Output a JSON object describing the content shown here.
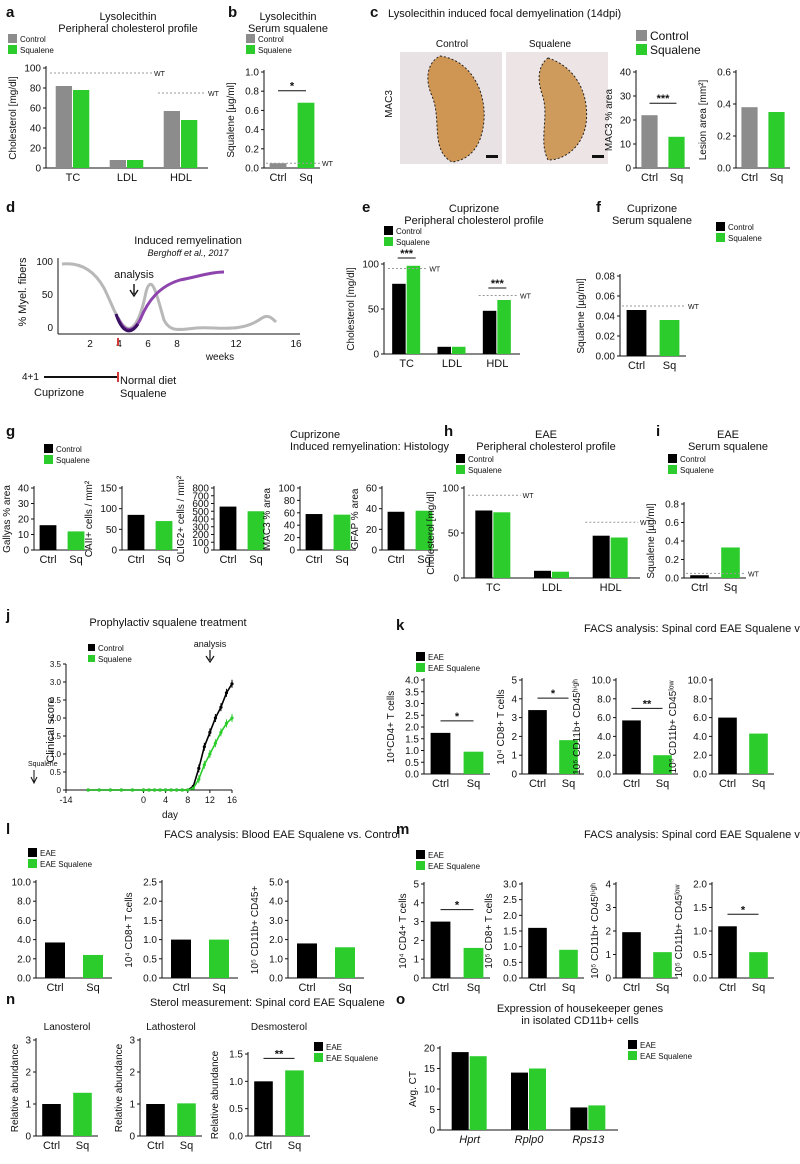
{
  "colors": {
    "control": "#8c8c8c",
    "green": "#2bcc2b",
    "eae": "#000000",
    "purple": "#8e44ad",
    "gray_curve": "#b8b8b8",
    "dash": "#9a9a9a",
    "stain": "#c8853e"
  },
  "panel_labels": [
    "a",
    "b",
    "c",
    "d",
    "e",
    "f",
    "g",
    "h",
    "i",
    "j",
    "k",
    "l",
    "m",
    "n",
    "o"
  ],
  "panel_d": {
    "title": "Induced remyelination",
    "citation": "Berghoff et al., 2017",
    "analysis_label": "analysis",
    "ylabel": "% Myel. fibers",
    "y_ticks": [
      "100",
      "50",
      "0"
    ],
    "x_ticks": [
      "2",
      "4",
      "6",
      "8",
      "12",
      "16"
    ],
    "x_unit": "weeks",
    "schedule_label": "4+1",
    "cuprizone_label": "Cuprizone",
    "diet_label": "Normal diet",
    "squalene_label": "Squalene"
  },
  "panel_c_images": {
    "title": "Lysolecithin induced focal demyelination (14dpi)",
    "left_label": "Control",
    "right_label": "Squalene",
    "stain_label": "MAC3",
    "legend": [
      "Control",
      "Squalene"
    ]
  },
  "panel_j": {
    "title": "Prophylactiv squalene treatment",
    "ylabel": "Clinical score",
    "xlabel": "day",
    "legend": [
      "Control",
      "Squalene"
    ],
    "analysis_label": "analysis",
    "squalene_marker": "Squalene",
    "x_ticks": [
      "-14",
      "0",
      "4",
      "8",
      "12",
      "16"
    ],
    "y_ticks": [
      "0",
      "0.5",
      "1.0",
      "1.5",
      "2.0",
      "2.5",
      "3.0",
      "3.5"
    ],
    "control_values": [
      0,
      0,
      0,
      0,
      0,
      0,
      0,
      0,
      0,
      0,
      0,
      0,
      0,
      0,
      0.1,
      0.6,
      1.2,
      1.6,
      2.0,
      2.3,
      2.7,
      2.95
    ],
    "squalene_values": [
      0,
      0,
      0,
      0,
      0,
      0,
      0,
      0,
      0,
      0,
      0,
      0,
      0,
      0,
      0.05,
      0.3,
      0.7,
      1.0,
      1.3,
      1.6,
      1.85,
      2.0
    ]
  },
  "chart_data": [
    {
      "id": "a",
      "type": "bar",
      "title": [
        "Lysolecithin",
        "Peripheral cholesterol profile"
      ],
      "legend": [
        "Control",
        "Squalene"
      ],
      "ylabel": "Cholesterol [mg/dl]",
      "categories": [
        "TC",
        "LDL",
        "HDL"
      ],
      "series": [
        {
          "name": "Control",
          "values": [
            82,
            8,
            57
          ]
        },
        {
          "name": "Squalene",
          "values": [
            78,
            8,
            48
          ]
        }
      ],
      "ylim": [
        0,
        100
      ],
      "yticks": [
        "0",
        "20",
        "40",
        "60",
        "80",
        "100"
      ],
      "wt": [
        {
          "value": 95,
          "from": 0,
          "to": 1,
          "label": "WT"
        },
        {
          "value": 75,
          "from": 2,
          "to": 2,
          "label": "WT"
        }
      ]
    },
    {
      "id": "b",
      "type": "bar",
      "title": [
        "Lysolecithin",
        "Serum squalene"
      ],
      "legend": [
        "Control",
        "Squalene"
      ],
      "ylabel": "Squalene [µg/ml]",
      "categories": [
        "Ctrl",
        "Sq"
      ],
      "values": [
        0.05,
        0.68
      ],
      "ylim": [
        0,
        1.0
      ],
      "yticks": [
        "0.0",
        "0.2",
        "0.4",
        "0.6",
        "0.8",
        "1.0"
      ],
      "sig": "*",
      "wt": [
        {
          "value": 0.05,
          "label": "WT"
        }
      ]
    },
    {
      "id": "c1",
      "type": "bar",
      "title": [],
      "ylabel": "MAC3 % area",
      "categories": [
        "Ctrl",
        "Sq"
      ],
      "values": [
        22,
        13
      ],
      "ylim": [
        0,
        40
      ],
      "yticks": [
        "0",
        "10",
        "20",
        "30",
        "40"
      ],
      "sig": "***"
    },
    {
      "id": "c2",
      "type": "bar",
      "title": [],
      "ylabel": "Lesion area [mm²]",
      "categories": [
        "Ctrl",
        "Sq"
      ],
      "values": [
        0.38,
        0.35
      ],
      "ylim": [
        0,
        0.6
      ],
      "yticks": [
        "0.0",
        "0.2",
        "0.4",
        "0.6"
      ]
    },
    {
      "id": "e",
      "type": "bar",
      "title": [
        "Cuprizone",
        "Peripheral cholesterol profile"
      ],
      "legend": [
        "Control",
        "Squalene"
      ],
      "ylabel": "Cholesterol [mg/dl]",
      "categories": [
        "TC",
        "LDL",
        "HDL"
      ],
      "series": [
        {
          "name": "Control",
          "values": [
            78,
            8,
            48
          ]
        },
        {
          "name": "Squalene",
          "values": [
            98,
            8,
            60
          ]
        }
      ],
      "ylim": [
        0,
        100
      ],
      "yticks": [
        "0",
        "50",
        "100"
      ],
      "sigs": [
        "***",
        "",
        "***"
      ],
      "wt": [
        {
          "value": 95,
          "from": 0,
          "to": 0,
          "label": "WT"
        },
        {
          "value": 65,
          "from": 2,
          "to": 2,
          "label": "WT"
        }
      ]
    },
    {
      "id": "f",
      "type": "bar",
      "title": [
        "Cuprizone",
        "Serum squalene"
      ],
      "legend": [
        "Control",
        "Squalene"
      ],
      "ylabel": "Squalene [µg/ml]",
      "categories": [
        "Ctrl",
        "Sq"
      ],
      "values": [
        0.046,
        0.036
      ],
      "ylim": [
        0,
        0.08
      ],
      "yticks": [
        "0.00",
        "0.02",
        "0.04",
        "0.06",
        "0.08"
      ],
      "wt": [
        {
          "value": 0.05,
          "label": "WT"
        }
      ]
    },
    {
      "id": "g1",
      "type": "bar",
      "title": [
        "Cuprizone",
        "Induced remyelination: Histology"
      ],
      "legend": [
        "Control",
        "Squalene"
      ],
      "ylabel": "Gallyas % area",
      "categories": [
        "Ctrl",
        "Sq"
      ],
      "values": [
        16,
        12
      ],
      "ylim": [
        0,
        40
      ],
      "yticks": [
        "0",
        "10",
        "20",
        "30",
        "40"
      ]
    },
    {
      "id": "g2",
      "type": "bar",
      "title": [],
      "ylabel": "CAII+ cells / mm²",
      "categories": [
        "Ctrl",
        "Sq"
      ],
      "values": [
        85,
        70
      ],
      "ylim": [
        0,
        150
      ],
      "yticks": [
        "0",
        "50",
        "100",
        "150"
      ]
    },
    {
      "id": "g3",
      "type": "bar",
      "title": [],
      "ylabel": "OLIG2+ cells / mm²",
      "categories": [
        "Ctrl",
        "Sq"
      ],
      "values": [
        560,
        500
      ],
      "ylim": [
        0,
        800
      ],
      "yticks": [
        "0",
        "100",
        "200",
        "300",
        "400",
        "500",
        "600",
        "700",
        "800"
      ]
    },
    {
      "id": "g4",
      "type": "bar",
      "title": [],
      "ylabel": "MAC3 % area",
      "categories": [
        "Ctrl",
        "Sq"
      ],
      "values": [
        58,
        57
      ],
      "ylim": [
        0,
        100
      ],
      "yticks": [
        "0",
        "20",
        "40",
        "60",
        "80",
        "100"
      ]
    },
    {
      "id": "g5",
      "type": "bar",
      "title": [],
      "ylabel": "GFAP % area",
      "categories": [
        "Ctrl",
        "Sq"
      ],
      "values": [
        37,
        38
      ],
      "ylim": [
        0,
        60
      ],
      "yticks": [
        "0",
        "20",
        "40",
        "60"
      ]
    },
    {
      "id": "h",
      "type": "bar",
      "title": [
        "EAE",
        "Peripheral cholesterol profile"
      ],
      "legend": [
        "Control",
        "Squalene"
      ],
      "ylabel": "Cholesterol [mg/dl]",
      "categories": [
        "TC",
        "LDL",
        "HDL"
      ],
      "series": [
        {
          "name": "Control",
          "values": [
            75,
            8,
            47
          ]
        },
        {
          "name": "Squalene",
          "values": [
            73,
            7,
            45
          ]
        }
      ],
      "ylim": [
        0,
        100
      ],
      "yticks": [
        "0",
        "50",
        "100"
      ],
      "wt": [
        {
          "value": 92,
          "from": 0,
          "to": 0,
          "label": "WT"
        },
        {
          "value": 62,
          "from": 2,
          "to": 2,
          "label": "WT"
        }
      ]
    },
    {
      "id": "i",
      "type": "bar",
      "title": [
        "EAE",
        "Serum squalene"
      ],
      "legend": [
        "Control",
        "Squalene"
      ],
      "ylabel": "Squalene [µg/ml]",
      "categories": [
        "Ctrl",
        "Sq"
      ],
      "values": [
        0.03,
        0.33
      ],
      "ylim": [
        0,
        0.8
      ],
      "yticks": [
        "0.0",
        "0.2",
        "0.4",
        "0.6",
        "0.8"
      ],
      "wt": [
        {
          "value": 0.05,
          "label": "WT"
        }
      ]
    },
    {
      "id": "k1",
      "type": "bar",
      "title": [
        "FACS analysis: Spinal cord EAE Squalene vs. Control (Prophylactic)"
      ],
      "legend": [
        "EAE",
        "EAE Squalene"
      ],
      "ylabel": "10⁴CD4+ T cells",
      "categories": [
        "Ctrl",
        "Sq"
      ],
      "values": [
        1.75,
        0.95
      ],
      "ylim": [
        0,
        4.0
      ],
      "yticks": [
        "0.0",
        "0.5",
        "1.0",
        "1.5",
        "2.0",
        "2.5",
        "3.0",
        "3.5",
        "4.0"
      ],
      "sig": "*"
    },
    {
      "id": "k2",
      "type": "bar",
      "title": [],
      "ylabel": "10⁴ CD8+ T cells",
      "categories": [
        "Ctrl",
        "Sq"
      ],
      "values": [
        3.4,
        1.8
      ],
      "ylim": [
        0,
        5
      ],
      "yticks": [
        "0",
        "1",
        "2",
        "3",
        "4",
        "5"
      ],
      "sig": "*"
    },
    {
      "id": "k3",
      "type": "bar",
      "title": [],
      "ylabel": "10⁵ CD11b+ CD45ʰⁱᵍʰ",
      "categories": [
        "Ctrl",
        "Sq"
      ],
      "values": [
        5.7,
        2.0
      ],
      "ylim": [
        0,
        10
      ],
      "yticks": [
        "0.0",
        "2.0",
        "4.0",
        "6.0",
        "8.0",
        "10.0"
      ],
      "sig": "**"
    },
    {
      "id": "k4",
      "type": "bar",
      "title": [],
      "ylabel": "10⁵ CD11b+ CD45ˡᵒʷ",
      "categories": [
        "Ctrl",
        "Sq"
      ],
      "values": [
        6.0,
        4.3
      ],
      "ylim": [
        0,
        10
      ],
      "yticks": [
        "0.0",
        "2.0",
        "4.0",
        "6.0",
        "8.0",
        "10.0"
      ]
    },
    {
      "id": "l1",
      "type": "bar",
      "title": [
        "FACS analysis: Blood EAE Squalene vs. Control"
      ],
      "legend": [
        "EAE",
        "EAE Squalene"
      ],
      "ylabel": "10⁴CD4+ T cells",
      "categories": [
        "Ctrl",
        "Sq"
      ],
      "values": [
        3.7,
        2.4
      ],
      "ylim": [
        0,
        10
      ],
      "yticks": [
        "0.0",
        "2.0",
        "4.0",
        "6.0",
        "8.0",
        "10.0"
      ]
    },
    {
      "id": "l2",
      "type": "bar",
      "title": [],
      "ylabel": "10⁴ CD8+ T cells",
      "categories": [
        "Ctrl",
        "Sq"
      ],
      "values": [
        1.0,
        1.0
      ],
      "ylim": [
        0,
        2.5
      ],
      "yticks": [
        "0.0",
        "0.5",
        "1.0",
        "1.5",
        "2.0",
        "2.5"
      ]
    },
    {
      "id": "l3",
      "type": "bar",
      "title": [],
      "ylabel": "10⁵ CD11b+ CD45+",
      "categories": [
        "Ctrl",
        "Sq"
      ],
      "values": [
        1.8,
        1.6
      ],
      "ylim": [
        0,
        5
      ],
      "yticks": [
        "0.0",
        "1.0",
        "2.0",
        "3.0",
        "4.0",
        "5.0"
      ]
    },
    {
      "id": "m1",
      "type": "bar",
      "title": [
        "FACS analysis: Spinal cord EAE Squalene vs Control (Therapeutic)"
      ],
      "legend": [
        "EAE",
        "EAE Squalene"
      ],
      "ylabel": "10⁴ CD4+ T cells",
      "categories": [
        "Ctrl",
        "Sq"
      ],
      "values": [
        3.0,
        1.6
      ],
      "ylim": [
        0,
        5
      ],
      "yticks": [
        "0",
        "1",
        "2",
        "3",
        "4",
        "5"
      ],
      "sig": "*"
    },
    {
      "id": "m2",
      "type": "bar",
      "title": [],
      "ylabel": "10⁵ CD8+ T cells",
      "categories": [
        "Ctrl",
        "Sq"
      ],
      "values": [
        1.6,
        0.9
      ],
      "ylim": [
        0,
        3.0
      ],
      "yticks": [
        "0.0",
        "0.5",
        "1.0",
        "1.5",
        "2.0",
        "2.5",
        "3.0"
      ]
    },
    {
      "id": "m3",
      "type": "bar",
      "title": [],
      "ylabel": "10⁵ CD11b+ CD45ʰⁱᵍʰ",
      "categories": [
        "Ctrl",
        "Sq"
      ],
      "values": [
        1.95,
        1.1
      ],
      "ylim": [
        0,
        4
      ],
      "yticks": [
        "0",
        "1",
        "2",
        "3",
        "4"
      ]
    },
    {
      "id": "m4",
      "type": "bar",
      "title": [],
      "ylabel": "10⁵ CD11b+ CD45ˡᵒʷ",
      "categories": [
        "Ctrl",
        "Sq"
      ],
      "values": [
        1.1,
        0.55
      ],
      "ylim": [
        0,
        2.0
      ],
      "yticks": [
        "0.0",
        "0.5",
        "1.0",
        "1.5",
        "2.0"
      ],
      "sig": "*"
    },
    {
      "id": "n1",
      "type": "bar",
      "title": [
        "Sterol measurement: Spinal cord EAE Squalene"
      ],
      "subtitle": "Lanosterol",
      "ylabel": "Relative abundance",
      "categories": [
        "Ctrl",
        "Sq"
      ],
      "values": [
        1.0,
        1.35
      ],
      "ylim": [
        0,
        3
      ],
      "yticks": [
        "0",
        "1",
        "2",
        "3"
      ]
    },
    {
      "id": "n2",
      "type": "bar",
      "title": [],
      "subtitle": "Lathosterol",
      "ylabel": "Relative abundance",
      "categories": [
        "Ctrl",
        "Sq"
      ],
      "values": [
        1.0,
        1.02
      ],
      "ylim": [
        0,
        3
      ],
      "yticks": [
        "0",
        "1",
        "2",
        "3"
      ]
    },
    {
      "id": "n3",
      "type": "bar",
      "title": [],
      "subtitle": "Desmosterol",
      "legend": [
        "EAE",
        "EAE Squalene"
      ],
      "ylabel": "Relative abundance",
      "categories": [
        "Ctrl",
        "Sq"
      ],
      "values": [
        1.0,
        1.2
      ],
      "ylim": [
        0,
        1.5
      ],
      "yticks": [
        "0.0",
        "0.5",
        "1.0",
        "1.5"
      ],
      "sig": "**"
    },
    {
      "id": "o",
      "type": "bar",
      "title": [
        "Expression of housekeeper genes",
        "in isolated CD11b+ cells"
      ],
      "legend": [
        "EAE",
        "EAE Squalene"
      ],
      "ylabel": "Avg. CT",
      "categories": [
        "Hprt",
        "Rplp0",
        "Rps13"
      ],
      "series": [
        {
          "name": "EAE",
          "values": [
            19,
            14,
            5.5
          ]
        },
        {
          "name": "EAE Squalene",
          "values": [
            18,
            15,
            6
          ]
        }
      ],
      "ylim": [
        0,
        20
      ],
      "yticks": [
        "0",
        "5",
        "10",
        "15",
        "20"
      ]
    }
  ]
}
